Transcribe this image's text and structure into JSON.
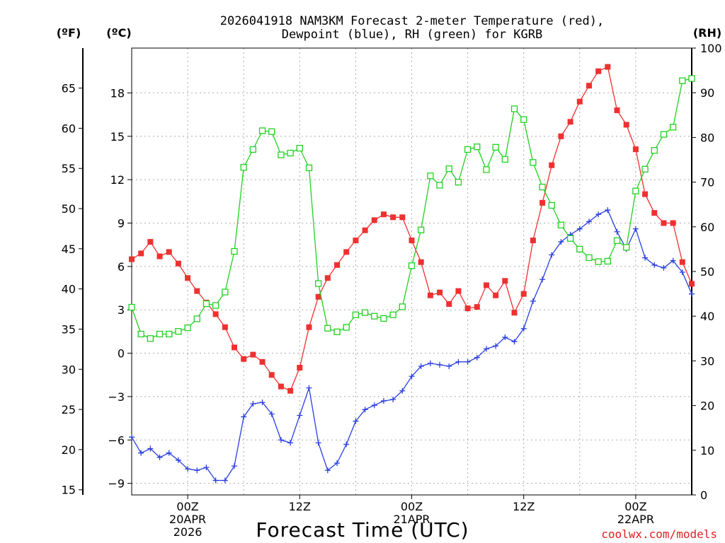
{
  "chart_data": {
    "type": "line",
    "title_line1": "2026041918 NAM3KM Forecast 2-meter Temperature (red),",
    "title_line2": "Dewpoint (blue), RH (green) for KGRB",
    "xlabel": "Forecast Time (UTC)",
    "credit": "coolwx.com/models",
    "grid": true,
    "units": {
      "fahrenheit": "(ºF)",
      "celsius": "(ºC)",
      "rh": "(RH)"
    },
    "x_range_hours": [
      -6,
      54
    ],
    "celsius_ylim": [
      -9.8,
      21.1
    ],
    "rh_ylim": [
      0,
      100
    ],
    "celsius_ticks": [
      "18",
      "15",
      "12",
      "9",
      "6",
      "3",
      "0",
      "−3",
      "−6",
      "−9"
    ],
    "fahrenheit_ticks": [
      "65",
      "60",
      "55",
      "50",
      "45",
      "40",
      "35",
      "30",
      "25",
      "20",
      "15"
    ],
    "rh_ticks": [
      "100",
      "90",
      "80",
      "70",
      "60",
      "50",
      "40",
      "30",
      "20",
      "10",
      "0"
    ],
    "x_ticks": [
      {
        "hour": 0,
        "lines": [
          "00Z",
          "20APR",
          "2026"
        ]
      },
      {
        "hour": 12,
        "lines": [
          "12Z"
        ]
      },
      {
        "hour": 24,
        "lines": [
          "00Z",
          "21APR"
        ]
      },
      {
        "hour": 36,
        "lines": [
          "12Z"
        ]
      },
      {
        "hour": 48,
        "lines": [
          "00Z",
          "22APR"
        ]
      }
    ],
    "colors": {
      "temperature": "#ef3030",
      "dewpoint": "#2a3fe0",
      "rh": "#22d022"
    },
    "series": [
      {
        "name": "2-meter Temperature (red)",
        "units": "°C",
        "marker": "filled-square",
        "x": [
          -6,
          -5,
          -4,
          -3,
          -2,
          -1,
          0,
          1,
          2,
          3,
          4,
          5,
          6,
          7,
          8,
          9,
          10,
          11,
          12,
          13,
          14,
          15,
          16,
          17,
          18,
          19,
          20,
          21,
          22,
          23,
          24,
          25,
          26,
          27,
          28,
          29,
          30,
          31,
          32,
          33,
          34,
          35,
          36,
          37,
          38,
          39,
          40,
          41,
          42,
          43,
          44,
          45,
          46,
          47,
          48,
          49,
          50,
          51,
          52,
          53,
          54
        ],
        "y": [
          6.5,
          6.9,
          7.7,
          6.7,
          7.0,
          6.2,
          5.2,
          4.3,
          3.5,
          2.7,
          1.8,
          0.4,
          -0.4,
          -0.1,
          -0.6,
          -1.5,
          -2.3,
          -2.6,
          -1.0,
          1.8,
          3.9,
          5.2,
          6.1,
          7.0,
          7.8,
          8.5,
          9.2,
          9.6,
          9.4,
          9.4,
          7.8,
          6.3,
          4.0,
          4.2,
          3.4,
          4.3,
          3.1,
          3.2,
          4.7,
          4.0,
          5.0,
          2.8,
          4.1,
          7.8,
          10.4,
          13.0,
          15.0,
          16.0,
          17.4,
          18.5,
          19.5,
          19.8,
          16.8,
          15.8,
          14.1,
          11.0,
          9.7,
          9.0,
          9.0,
          6.3,
          4.8
        ]
      },
      {
        "name": "Dewpoint (blue)",
        "units": "°C",
        "marker": "plus",
        "x": [
          -6,
          -5,
          -4,
          -3,
          -2,
          -1,
          0,
          1,
          2,
          3,
          4,
          5,
          6,
          7,
          8,
          9,
          10,
          11,
          12,
          13,
          14,
          15,
          16,
          17,
          18,
          19,
          20,
          21,
          22,
          23,
          24,
          25,
          26,
          27,
          28,
          29,
          30,
          31,
          32,
          33,
          34,
          35,
          36,
          37,
          38,
          39,
          40,
          41,
          42,
          43,
          44,
          45,
          46,
          47,
          48,
          49,
          50,
          51,
          52,
          53,
          54
        ],
        "y": [
          -5.8,
          -6.9,
          -6.6,
          -7.2,
          -6.9,
          -7.4,
          -8.0,
          -8.1,
          -7.9,
          -8.8,
          -8.8,
          -7.8,
          -4.4,
          -3.5,
          -3.4,
          -4.2,
          -6.0,
          -6.2,
          -4.3,
          -2.4,
          -6.2,
          -8.1,
          -7.6,
          -6.3,
          -4.7,
          -3.9,
          -3.6,
          -3.3,
          -3.2,
          -2.6,
          -1.6,
          -0.9,
          -0.7,
          -0.8,
          -0.9,
          -0.6,
          -0.6,
          -0.3,
          0.3,
          0.5,
          1.1,
          0.8,
          1.7,
          3.6,
          5.1,
          6.8,
          7.7,
          8.2,
          8.6,
          9.1,
          9.6,
          9.9,
          8.4,
          7.2,
          8.6,
          6.6,
          6.1,
          5.9,
          6.4,
          5.6,
          4.1
        ]
      },
      {
        "name": "RH (green)",
        "units": "%",
        "marker": "open-square",
        "x": [
          -6,
          -5,
          -4,
          -3,
          -2,
          -1,
          0,
          1,
          2,
          3,
          4,
          5,
          6,
          7,
          8,
          9,
          10,
          11,
          12,
          13,
          14,
          15,
          16,
          17,
          18,
          19,
          20,
          21,
          22,
          23,
          24,
          25,
          26,
          27,
          28,
          29,
          30,
          31,
          32,
          33,
          34,
          35,
          36,
          37,
          38,
          39,
          40,
          41,
          42,
          43,
          44,
          45,
          46,
          47,
          48,
          49,
          50,
          51,
          52,
          53,
          54
        ],
        "y": [
          42,
          36,
          35,
          36,
          36,
          36.6,
          37.4,
          39.4,
          42.8,
          42.4,
          45.4,
          54.5,
          73.3,
          77.3,
          81.5,
          81.3,
          76.1,
          76.5,
          77.6,
          73.2,
          47.3,
          37.3,
          36.5,
          37.5,
          40.3,
          40.8,
          40.0,
          39.5,
          40.3,
          42.1,
          51.3,
          59.3,
          71.4,
          69.3,
          73.0,
          70.0,
          77.3,
          77.9,
          72.8,
          77.8,
          75.1,
          86.4,
          84.0,
          74.4,
          68.9,
          64.8,
          60.4,
          57.4,
          55.0,
          53.1,
          52.2,
          52.3,
          56.9,
          55.4,
          68.0,
          72.9,
          77.1,
          80.7,
          82.3,
          92.7,
          93.2
        ]
      }
    ]
  }
}
